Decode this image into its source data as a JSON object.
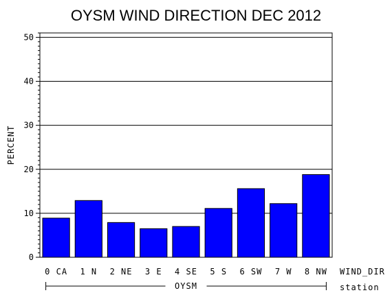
{
  "chart_data": {
    "type": "bar",
    "title": "OYSM WIND DIRECTION DEC 2012",
    "ylabel": "PERCENT",
    "xlabel": "WIND_DIR",
    "group_label": "OYSM",
    "group_axis_label": "station",
    "categories": [
      "0 CA",
      "1 N",
      "2 NE",
      "3 E",
      "4 SE",
      "5 S",
      "6 SW",
      "7 W",
      "8 NW"
    ],
    "values": [
      8.9,
      12.9,
      7.9,
      6.5,
      7.0,
      11.1,
      15.6,
      12.2,
      18.8
    ],
    "ylim": [
      0,
      51
    ],
    "yticks": [
      0,
      10,
      20,
      30,
      40,
      50
    ],
    "grid": true,
    "colors": {
      "bar": "#0000ff",
      "bar_edge": "#000000",
      "axis": "#000000"
    }
  }
}
